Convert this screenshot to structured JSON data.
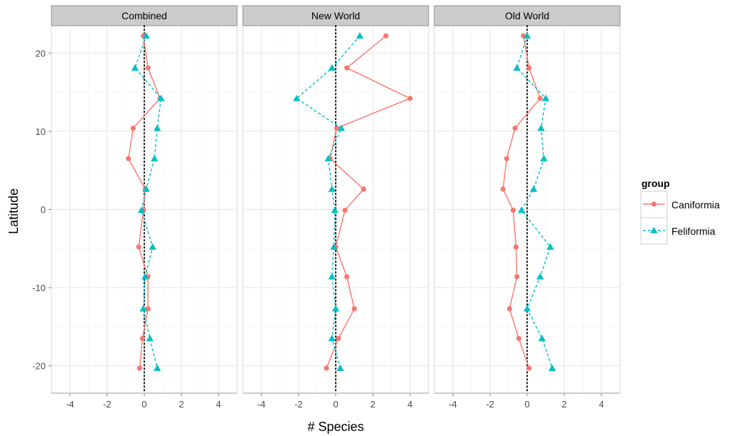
{
  "chart_data": {
    "type": "line",
    "xlabel": "# Species",
    "ylabel": "Latitude",
    "xlim": [
      -5,
      5
    ],
    "ylim": [
      -23.5,
      23.5
    ],
    "x_ticks": [
      -4,
      -2,
      0,
      2,
      4
    ],
    "y_ticks": [
      20,
      10,
      0,
      -10,
      -20
    ],
    "x_tick_labels": [
      "-4",
      "-2",
      "0",
      "2",
      "4"
    ],
    "y_tick_labels": [
      "20",
      "10",
      "0",
      "-10",
      "-20"
    ],
    "grid": true,
    "zero_reference_line": "dotted",
    "legend_position": "right",
    "legend": {
      "title": "group",
      "entries": [
        {
          "name": "Caniformia",
          "color": "#F8766D",
          "marker": "circle",
          "line": "solid"
        },
        {
          "name": "Feliformia",
          "color": "#00BFC4",
          "marker": "triangle",
          "line": "dashed"
        }
      ]
    },
    "panels": [
      {
        "title": "Combined",
        "series": [
          {
            "name": "Caniformia",
            "y": [
              22.2,
              18.1,
              14.2,
              10.4,
              6.5,
              2.6,
              -0.1,
              -4.8,
              -8.6,
              -12.7,
              -16.5,
              -20.3
            ],
            "x": [
              -0.05,
              0.2,
              0.85,
              -0.6,
              -0.85,
              0.05,
              -0.05,
              -0.3,
              0.2,
              0.2,
              -0.1,
              -0.25
            ]
          },
          {
            "name": "Feliformia",
            "y": [
              22.2,
              18.1,
              14.2,
              10.4,
              6.5,
              2.6,
              -0.1,
              -4.8,
              -8.6,
              -12.7,
              -16.5,
              -20.3
            ],
            "x": [
              0.1,
              -0.5,
              0.9,
              0.7,
              0.55,
              0.1,
              -0.15,
              0.45,
              0.05,
              -0.05,
              0.3,
              0.7
            ]
          }
        ]
      },
      {
        "title": "New World",
        "series": [
          {
            "name": "Caniformia",
            "y": [
              22.2,
              18.1,
              14.2,
              10.4,
              6.5,
              2.6,
              -0.1,
              -4.8,
              -8.6,
              -12.7,
              -16.5,
              -20.3
            ],
            "x": [
              2.7,
              0.6,
              4.0,
              0.05,
              -0.3,
              1.5,
              0.5,
              0.0,
              0.6,
              1.0,
              0.15,
              -0.5
            ]
          },
          {
            "name": "Feliformia",
            "y": [
              22.2,
              18.1,
              14.2,
              10.4,
              6.5,
              2.6,
              -0.1,
              -4.8,
              -8.6,
              -12.7,
              -16.5,
              -20.3
            ],
            "x": [
              1.3,
              -0.2,
              -2.1,
              0.3,
              -0.4,
              -0.2,
              -0.05,
              -0.1,
              -0.2,
              0.0,
              -0.2,
              0.25
            ]
          }
        ]
      },
      {
        "title": "Old World",
        "series": [
          {
            "name": "Caniformia",
            "y": [
              22.2,
              18.1,
              14.2,
              10.4,
              6.5,
              2.6,
              -0.1,
              -4.8,
              -8.6,
              -12.7,
              -16.5,
              -20.3
            ],
            "x": [
              -0.2,
              0.1,
              0.7,
              -0.65,
              -1.1,
              -1.3,
              -0.75,
              -0.6,
              -0.55,
              -0.95,
              -0.45,
              0.1
            ]
          },
          {
            "name": "Feliformia",
            "y": [
              22.2,
              18.1,
              14.2,
              10.4,
              6.5,
              2.6,
              -0.1,
              -4.8,
              -8.6,
              -12.7,
              -16.5,
              -20.3
            ],
            "x": [
              0.0,
              -0.55,
              1.0,
              0.75,
              0.9,
              0.35,
              -0.3,
              1.25,
              0.7,
              0.0,
              0.8,
              1.35
            ]
          }
        ]
      }
    ]
  }
}
